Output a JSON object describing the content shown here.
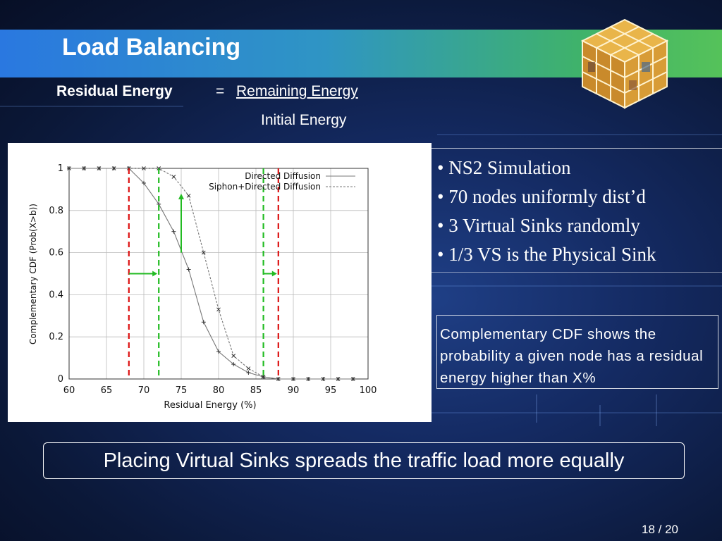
{
  "slide": {
    "title": "Load Balancing",
    "formula": {
      "term": "Residual Energy",
      "equals": "=",
      "numerator": "Remaining Energy",
      "denominator": "Initial Energy"
    },
    "bullets": [
      "• NS2 Simulation",
      "• 70 nodes uniformly dist’d",
      "• 3 Virtual Sinks randomly",
      "• 1/3 VS is the Physical Sink"
    ],
    "note": "Complementary CDF shows the probability a given node has a residual energy higher than X%",
    "summary": "Placing Virtual Sinks spreads the traffic load more equally",
    "page_number": "18 / 20"
  },
  "chart_data": {
    "type": "line",
    "xlabel": "Residual Energy (%)",
    "ylabel": "Complementary CDF (Prob(X>b))",
    "xlim": [
      60,
      100
    ],
    "ylim": [
      0,
      1
    ],
    "x_ticks": [
      60,
      65,
      70,
      75,
      80,
      85,
      90,
      95,
      100
    ],
    "y_ticks": [
      0,
      0.2,
      0.4,
      0.6,
      0.8,
      1
    ],
    "grid": true,
    "legend_position": "top-right",
    "series": [
      {
        "name": "Directed Diffusion",
        "style": "solid",
        "color": "#777777",
        "marker": "+",
        "x": [
          60,
          62,
          64,
          66,
          68,
          70,
          72,
          74,
          76,
          78,
          80,
          82,
          84,
          86,
          88,
          90,
          92,
          94,
          96,
          98
        ],
        "y": [
          1,
          1,
          1,
          1,
          1,
          0.93,
          0.83,
          0.7,
          0.52,
          0.27,
          0.13,
          0.07,
          0.03,
          0.01,
          0,
          0,
          0,
          0,
          0,
          0
        ]
      },
      {
        "name": "Siphon+Directed Diffusion",
        "style": "dashed",
        "color": "#777777",
        "marker": "x",
        "x": [
          60,
          62,
          64,
          66,
          68,
          70,
          72,
          74,
          76,
          78,
          80,
          82,
          84,
          86,
          88,
          90,
          92,
          94,
          96,
          98
        ],
        "y": [
          1,
          1,
          1,
          1,
          1,
          1,
          1,
          0.96,
          0.87,
          0.6,
          0.33,
          0.11,
          0.05,
          0.01,
          0,
          0,
          0,
          0,
          0,
          0
        ]
      }
    ],
    "annotations": {
      "red_dashed_x": [
        68,
        88
      ],
      "green_dashed_x": [
        72,
        86
      ],
      "horizontal_arrows": [
        {
          "from_x": 68,
          "to_x": 72,
          "y": 0.5
        },
        {
          "from_x": 86,
          "to_x": 88,
          "y": 0.5
        }
      ],
      "vertical_arrow": {
        "x": 75,
        "from_y": 0.6,
        "to_y": 0.88
      },
      "red_color": "#dd1111",
      "green_color": "#22bb22"
    }
  }
}
